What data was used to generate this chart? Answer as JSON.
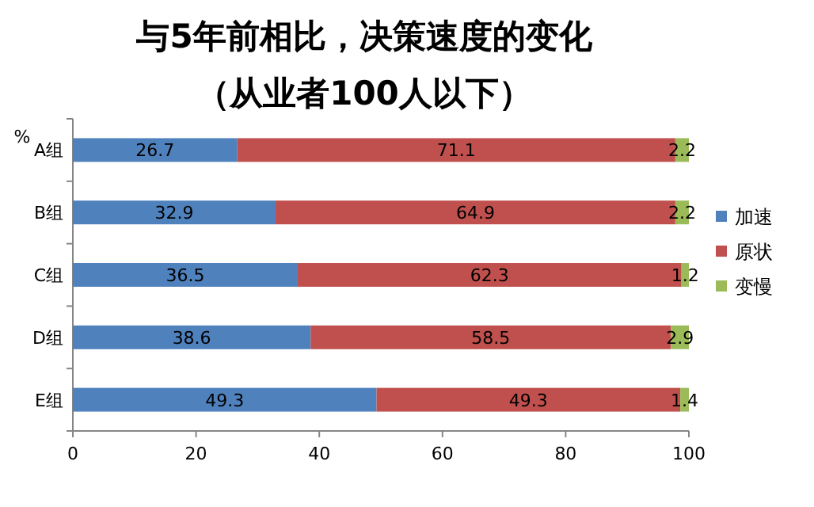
{
  "chart_data": {
    "type": "bar",
    "title": "与5年前相比，决策速度的变化",
    "subtitle": "（从业者100人以下）",
    "ylabel": "%",
    "orientation": "horizontal",
    "stacked": true,
    "data_labels": true,
    "legend": "right",
    "categories": [
      "A组",
      "B组",
      "C组",
      "D组",
      "E组"
    ],
    "xlim": [
      0,
      100
    ],
    "xticks": [
      0,
      20,
      40,
      60,
      80,
      100
    ],
    "series": [
      {
        "name": "加速",
        "color": "#4f81bd",
        "values": [
          26.7,
          32.9,
          36.5,
          38.6,
          49.3
        ]
      },
      {
        "name": "原状",
        "color": "#c0504d",
        "values": [
          71.1,
          64.9,
          62.3,
          58.5,
          49.3
        ]
      },
      {
        "name": "变慢",
        "color": "#9bbb59",
        "values": [
          2.2,
          2.2,
          1.2,
          2.9,
          1.4
        ]
      }
    ]
  }
}
